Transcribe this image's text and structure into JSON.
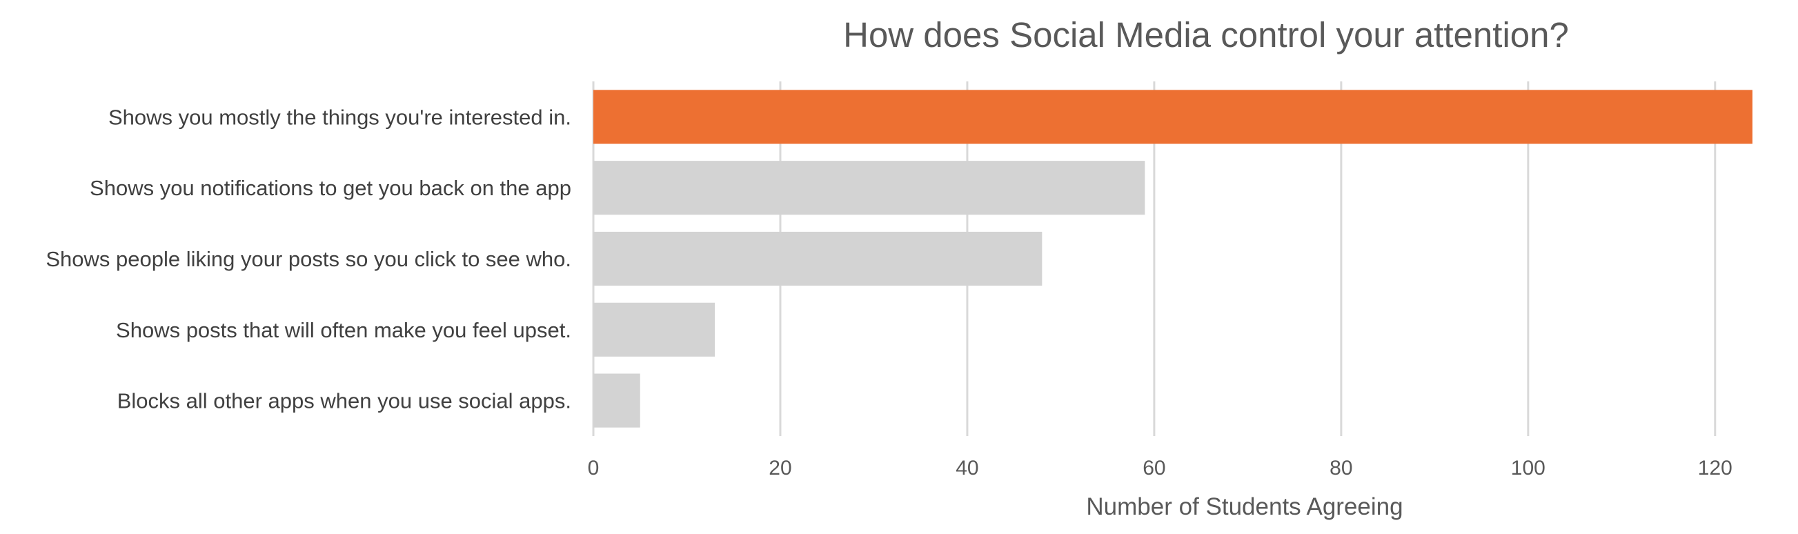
{
  "chart_data": {
    "type": "bar",
    "orientation": "horizontal",
    "title": "How does Social Media control your attention?",
    "xlabel": "Number of Students Agreeing",
    "ylabel": "",
    "categories": [
      "Shows you mostly the things you're interested in.",
      "Shows you notifications to get you back on the app",
      "Shows people liking your posts so you click to see who.",
      "Shows posts that will often make you feel upset.",
      "Blocks all other apps when you use social apps."
    ],
    "values": [
      124,
      59,
      48,
      13,
      5
    ],
    "xlim": [
      0,
      124
    ],
    "xticks": [
      0,
      20,
      40,
      60,
      80,
      100,
      120
    ],
    "grid": true,
    "legend": "none",
    "highlight_index": 0,
    "colors": {
      "highlight": "#ED7032",
      "default": "#D3D3D3",
      "grid": "#D9D9D9",
      "text": "#404040"
    }
  }
}
